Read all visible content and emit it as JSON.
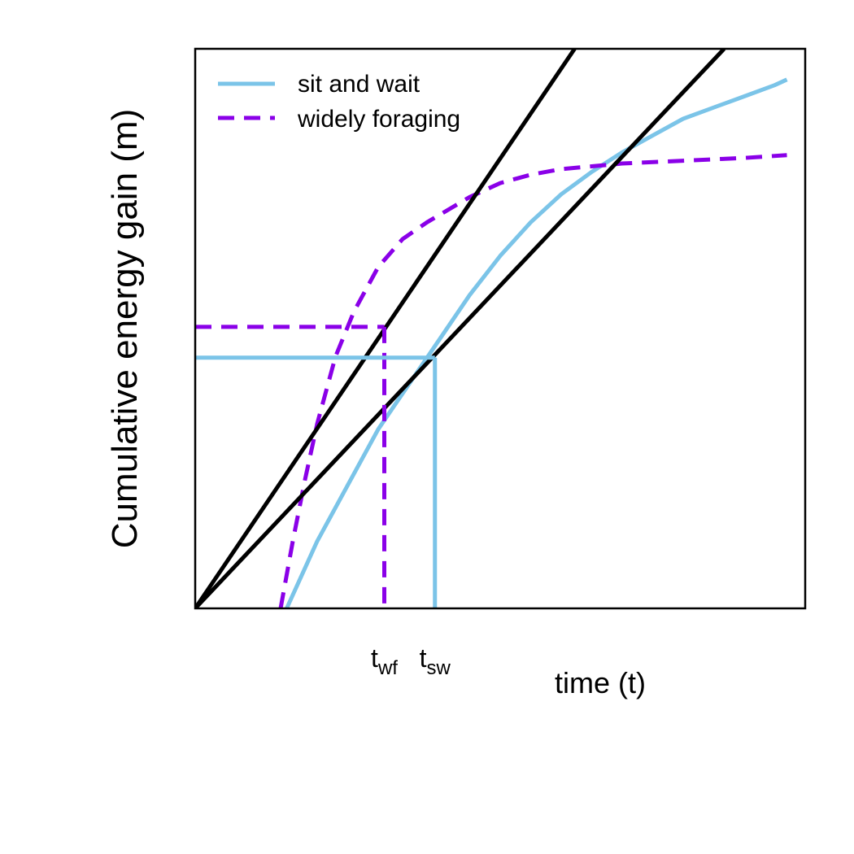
{
  "chart_data": {
    "type": "line",
    "xlabel": "time (t)",
    "ylabel": "Cumulative energy gain (m)",
    "xlim": [
      0,
      10
    ],
    "ylim": [
      0,
      10
    ],
    "axis_ticks": false,
    "legend": {
      "position": "top-left",
      "entries": [
        {
          "label": "sit and wait",
          "color": "#7BC4E8",
          "style": "solid"
        },
        {
          "label": "widely foraging",
          "color": "#8A00E8",
          "style": "dashed"
        }
      ]
    },
    "series": [
      {
        "name": "sit and wait",
        "color": "#7BC4E8",
        "style": "solid",
        "x": [
          1.5,
          2.0,
          2.5,
          3.0,
          3.5,
          4.0,
          4.5,
          5.0,
          5.5,
          6.0,
          6.5,
          7.0,
          7.5,
          8.0,
          8.5,
          9.0,
          9.5,
          9.7
        ],
        "y": [
          0.0,
          1.2,
          2.2,
          3.2,
          4.0,
          4.8,
          5.6,
          6.3,
          6.9,
          7.4,
          7.8,
          8.15,
          8.45,
          8.75,
          8.95,
          9.15,
          9.35,
          9.45
        ]
      },
      {
        "name": "widely foraging",
        "color": "#8A00E8",
        "style": "dashed",
        "x": [
          1.4,
          1.6,
          1.8,
          2.0,
          2.3,
          2.6,
          3.0,
          3.4,
          3.8,
          4.5,
          5.0,
          5.5,
          6.0,
          6.5,
          7.0,
          8.0,
          9.0,
          9.7
        ],
        "y": [
          0.0,
          1.2,
          2.3,
          3.3,
          4.5,
          5.3,
          6.1,
          6.6,
          6.9,
          7.35,
          7.6,
          7.75,
          7.85,
          7.9,
          7.95,
          8.0,
          8.05,
          8.1
        ]
      },
      {
        "name": "",
        "color": "#000000",
        "style": "solid",
        "x": [
          0,
          6.22
        ],
        "y": [
          0,
          10
        ]
      },
      {
        "name": "",
        "color": "#000000",
        "style": "solid",
        "x": [
          0,
          8.67
        ],
        "y": [
          0,
          10
        ]
      }
    ],
    "markers": [
      {
        "id": "wf",
        "color": "#8A00E8",
        "style": "dashed",
        "x": 3.1,
        "y": 5.03,
        "label_main": "t",
        "label_sub": "wf"
      },
      {
        "id": "sw",
        "color": "#7BC4E8",
        "style": "solid",
        "x": 3.93,
        "y": 4.48,
        "label_main": "t",
        "label_sub": "sw"
      }
    ]
  }
}
